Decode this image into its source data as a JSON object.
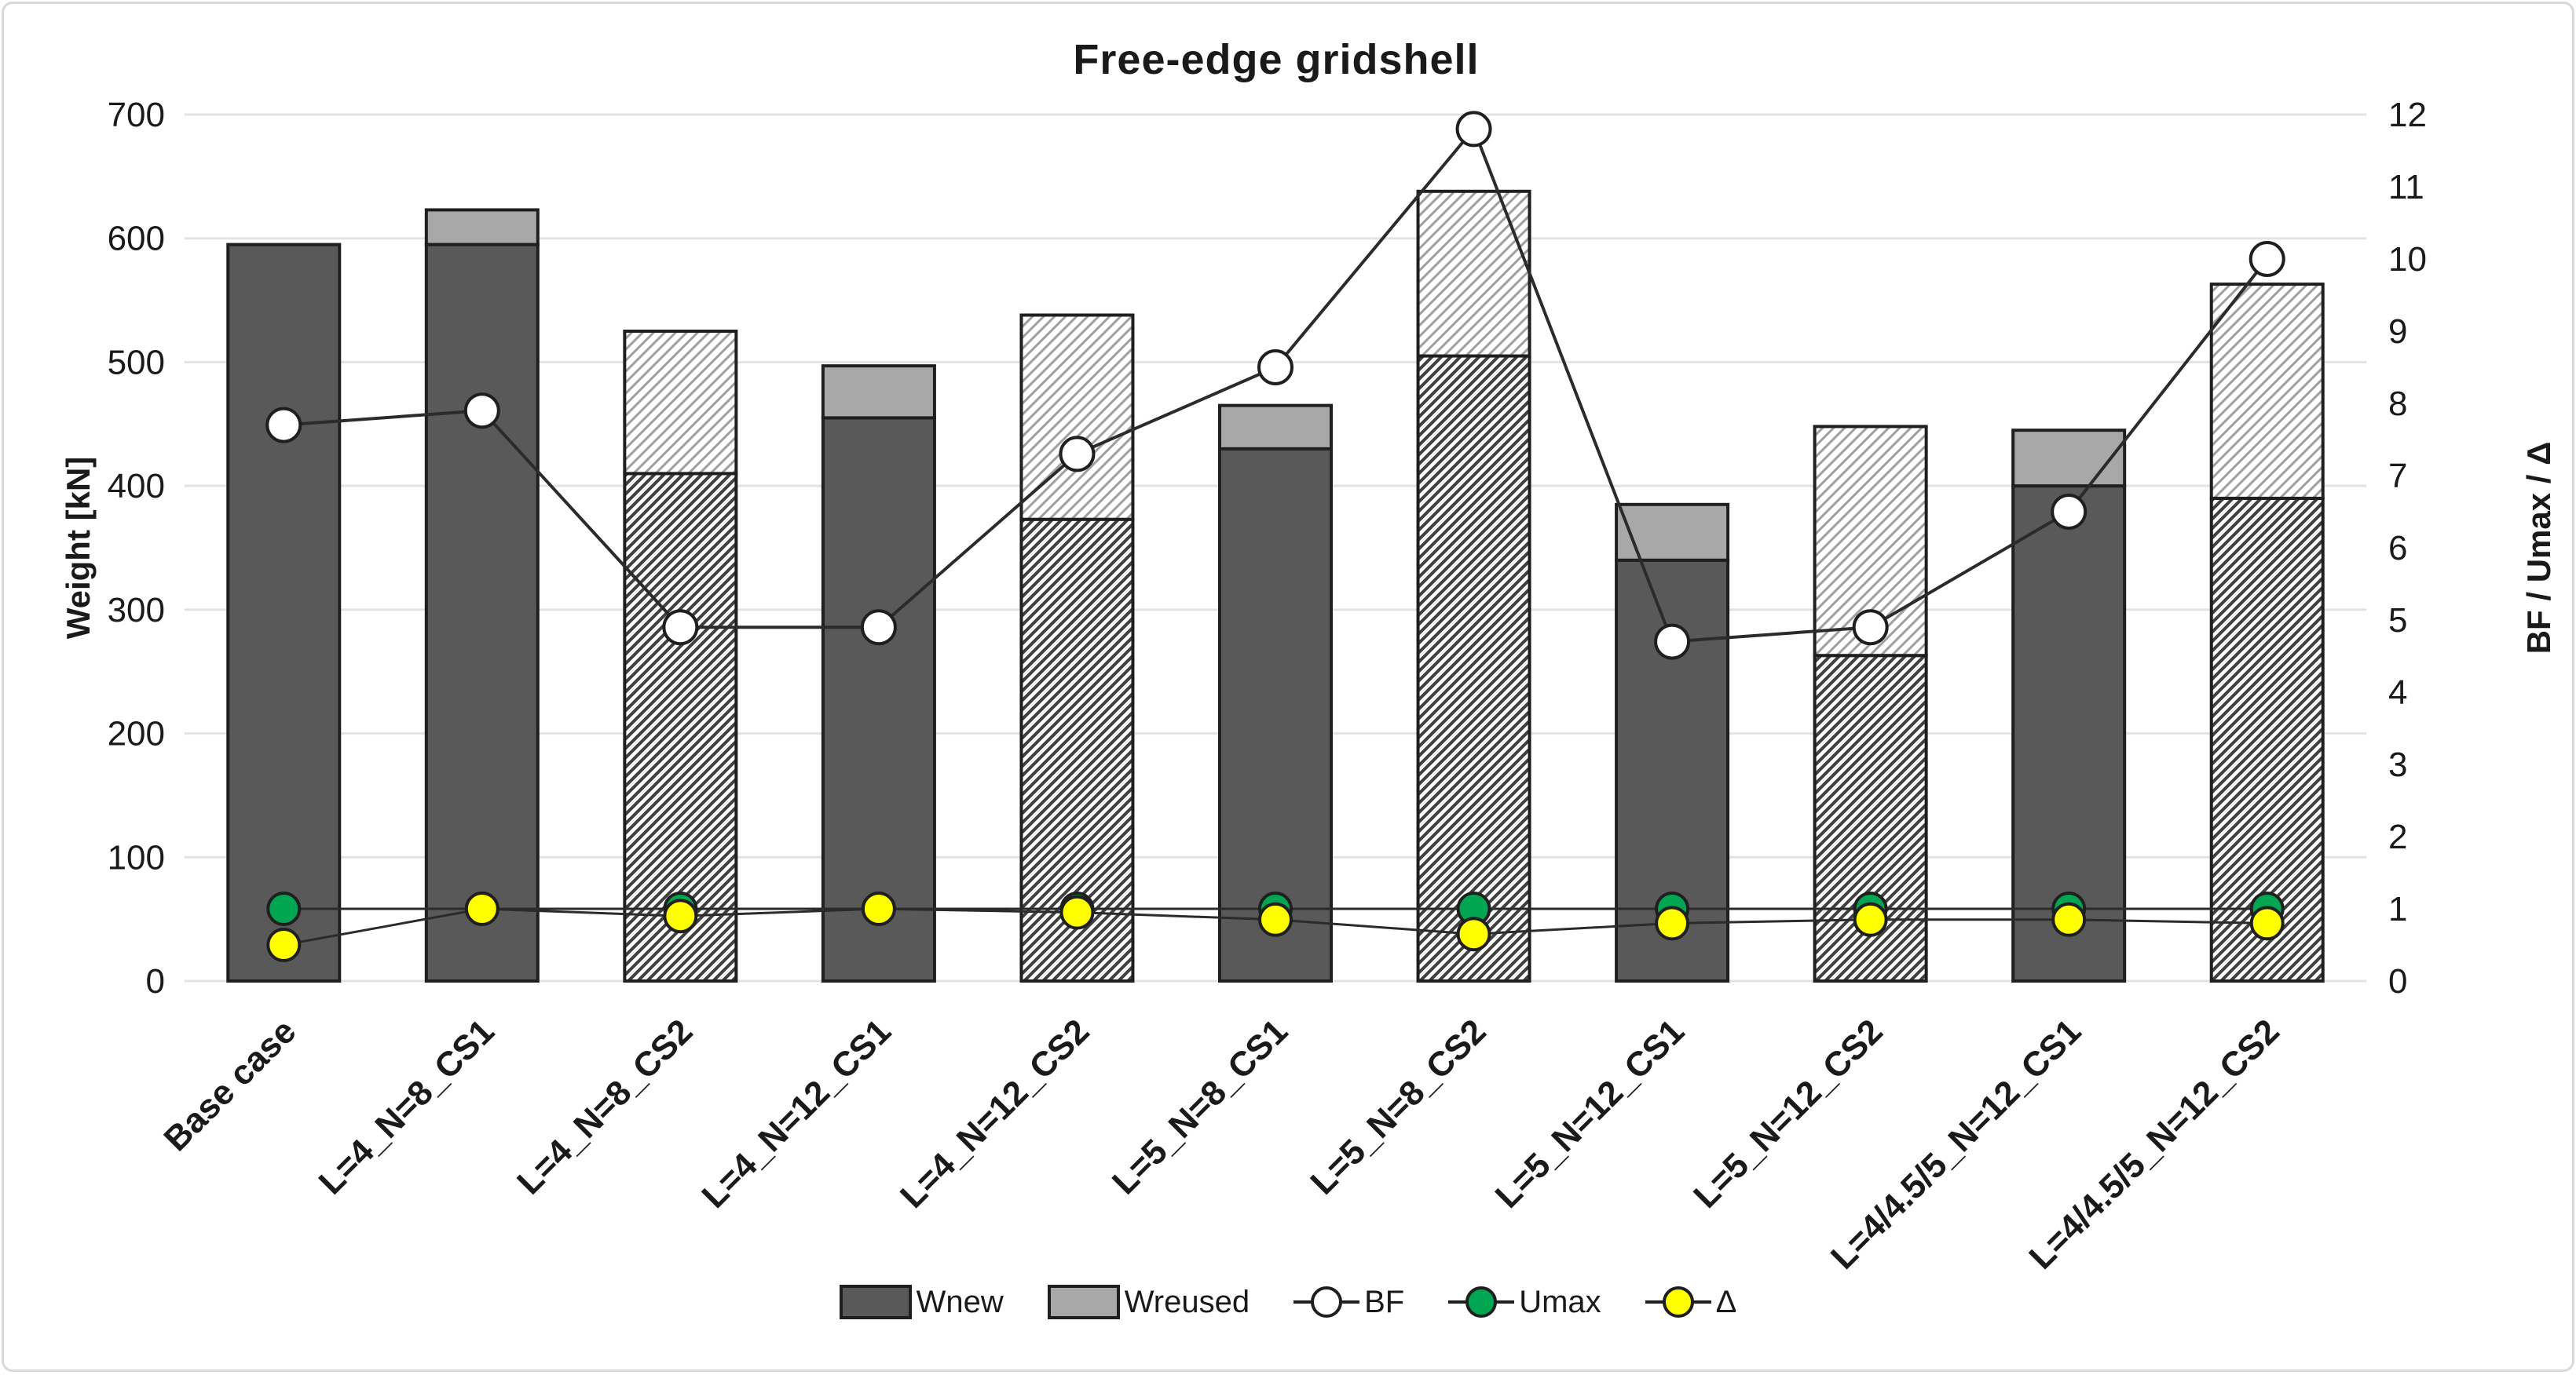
{
  "figure": {
    "title": "Free-edge gridshell"
  },
  "chart_data": {
    "type": "bar",
    "title": "Free-edge gridshell",
    "stacked": true,
    "grid": "horizontal",
    "legend_position": "bottom-center",
    "categories": [
      "Base case",
      "L=4_N=8_CS1",
      "L=4_N=8_CS2",
      "L=4_N=12_CS1",
      "L=4_N=12_CS2",
      "L=5_N=8_CS1",
      "L=5_N=8_CS2",
      "L=5_N=12_CS1",
      "L=5_N=12_CS2",
      "L=4/4.5/5_N=12_CS1",
      "L=4/4.5/5_N=12_CS2"
    ],
    "hatched_categories": [
      "L=4_N=8_CS2",
      "L=4_N=12_CS2",
      "L=5_N=8_CS2",
      "L=5_N=12_CS2",
      "L=4/4.5/5_N=12_CS2"
    ],
    "bar_series": [
      {
        "name": "Wnew",
        "axis": "left",
        "values": [
          595,
          595,
          410,
          455,
          373,
          430,
          505,
          340,
          263,
          400,
          390
        ]
      },
      {
        "name": "Wreused",
        "axis": "left",
        "values": [
          0,
          28,
          115,
          42,
          165,
          35,
          133,
          45,
          185,
          45,
          173
        ]
      }
    ],
    "line_series": [
      {
        "name": "BF",
        "axis": "right",
        "marker": "open-circle",
        "values": [
          7.7,
          7.9,
          4.9,
          4.9,
          7.3,
          8.5,
          11.8,
          4.7,
          4.9,
          6.5,
          10.0
        ]
      },
      {
        "name": "Umax",
        "axis": "right",
        "marker": "green-circle",
        "values": [
          1.0,
          1.0,
          1.0,
          1.0,
          1.0,
          1.0,
          1.0,
          1.0,
          1.0,
          1.0,
          1.0
        ]
      },
      {
        "name": "Δ",
        "axis": "right",
        "marker": "yellow-circle",
        "values": [
          0.5,
          1.0,
          0.9,
          1.0,
          0.95,
          0.85,
          0.65,
          0.8,
          0.85,
          0.85,
          0.8
        ]
      }
    ],
    "left_axis": {
      "title": "Weight [kN]",
      "min": 0,
      "max": 700,
      "step": 100,
      "ticks": [
        0,
        100,
        200,
        300,
        400,
        500,
        600,
        700
      ]
    },
    "right_axis": {
      "title": "BF / Umax / Δ",
      "min": 0,
      "max": 12,
      "step": 1,
      "ticks": [
        0,
        1,
        2,
        3,
        4,
        5,
        6,
        7,
        8,
        9,
        10,
        11,
        12
      ]
    },
    "legend": [
      {
        "label": "Wnew",
        "type": "bar-dark"
      },
      {
        "label": "Wreused",
        "type": "bar-light"
      },
      {
        "label": "BF",
        "type": "line-open"
      },
      {
        "label": "Umax",
        "type": "line-green"
      },
      {
        "label": "Δ",
        "type": "line-yellow"
      }
    ],
    "colors": {
      "wnew": "#595959",
      "wreused": "#a8a8a8",
      "outline": "#1f1f1f",
      "hatch_dark_line": "#404040",
      "hatch_light_line": "#a0a0a0",
      "gridline": "#e3e3e3",
      "bf_marker": "#ffffff",
      "umax_marker": "#00a651",
      "delta_marker": "#ffff00",
      "line": "#2b2b2b",
      "text": "#1a1a1a"
    }
  }
}
